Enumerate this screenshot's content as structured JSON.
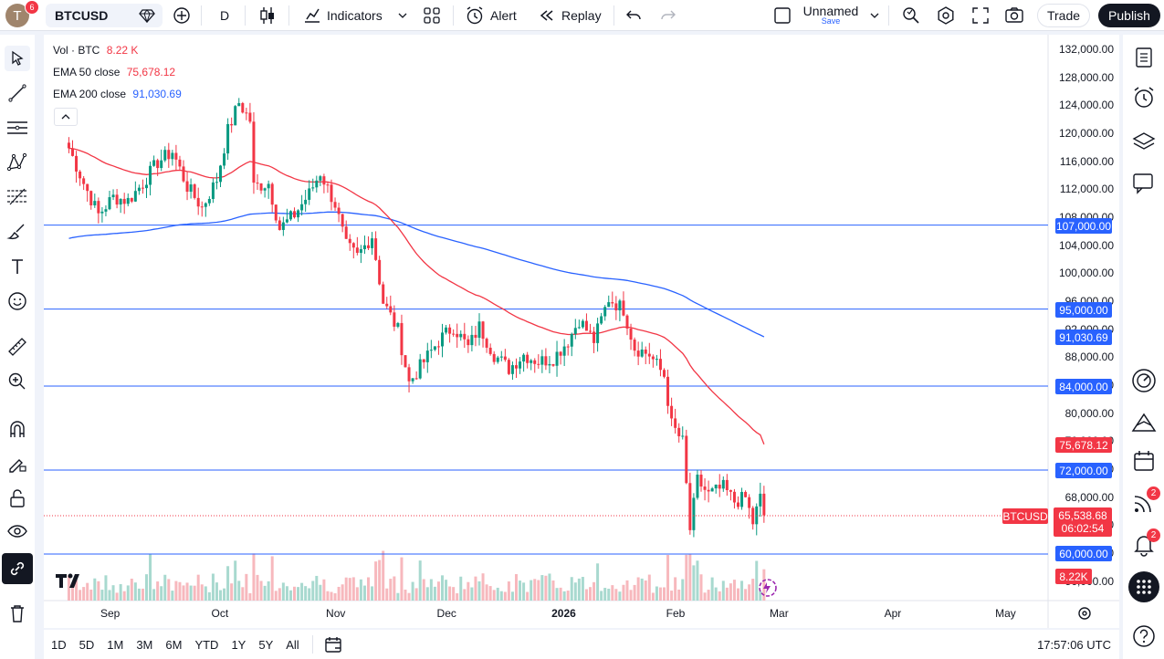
{
  "topbar": {
    "avatar_letter": "T",
    "avatar_badge": "6",
    "symbol": "BTCUSD",
    "interval": "D",
    "indicators_label": "Indicators",
    "alert_label": "Alert",
    "replay_label": "Replay",
    "layout_name": "Unnamed",
    "layout_save": "Save",
    "trade_label": "Trade",
    "publish_label": "Publish"
  },
  "legend": {
    "vol_title": "Vol · BTC",
    "vol_value": "8.22 K",
    "ema50_title": "EMA 50 close",
    "ema50_value": "75,678.12",
    "ema200_title": "EMA 200 close",
    "ema200_value": "91,030.69"
  },
  "price_axis": {
    "ticks": [
      "132,000.00",
      "128,000.00",
      "124,000.00",
      "120,000.00",
      "116,000.00",
      "112,000.00",
      "108,000.00",
      "104,000.00",
      "100,000.00",
      "96,000.00",
      "92,000.00",
      "88,000.00",
      "84,000.00",
      "80,000.00",
      "76,000.00",
      "72,000.00",
      "68,000.00",
      "64,000.00",
      "60,000.00",
      "56,000.00"
    ]
  },
  "price_labels": {
    "level_107": "107,000.00",
    "level_95": "95,000.00",
    "ema200": "91,030.69",
    "level_84": "84,000.00",
    "ema50": "75,678.12",
    "level_72": "72,000.00",
    "symbol_tag": "BTCUSD",
    "last_price": "65,538.68",
    "countdown": "06:02:54",
    "level_60": "60,000.00",
    "volume": "8.22K"
  },
  "time_axis": [
    "Sep",
    "Oct",
    "Nov",
    "Dec",
    "2026",
    "Feb",
    "Mar",
    "Apr",
    "May"
  ],
  "bottombar": {
    "ranges": [
      "1D",
      "5D",
      "1M",
      "3M",
      "6M",
      "YTD",
      "1Y",
      "5Y",
      "All"
    ],
    "clock": "17:57:06 UTC"
  },
  "right_badges": {
    "signals": "2",
    "alerts": "2"
  },
  "colors": {
    "up": "#089981",
    "down": "#f23645",
    "ema50": "#f23645",
    "ema200": "#2962ff",
    "hline": "#2962ff",
    "accent": "#2962ff"
  },
  "chart_data": {
    "type": "candlestick",
    "symbol": "BTCUSD",
    "interval": "D",
    "horizontal_levels": [
      107000,
      95000,
      84000,
      72000,
      60000
    ],
    "last_price": 65538.68,
    "ema50_last": 75678.12,
    "ema200_last": 91030.69,
    "volume_last_k": 8.22,
    "ylim": [
      56000,
      134000
    ],
    "close_path": [
      [
        "2025-08-21",
        118000
      ],
      [
        "2025-08-25",
        113000
      ],
      [
        "2025-08-29",
        108500
      ],
      [
        "2025-09-02",
        111000
      ],
      [
        "2025-09-06",
        110500
      ],
      [
        "2025-09-10",
        113000
      ],
      [
        "2025-09-14",
        116000
      ],
      [
        "2025-09-18",
        117500
      ],
      [
        "2025-09-22",
        112500
      ],
      [
        "2025-09-26",
        109500
      ],
      [
        "2025-09-30",
        113500
      ],
      [
        "2025-10-03",
        120500
      ],
      [
        "2025-10-06",
        124500
      ],
      [
        "2025-10-09",
        122000
      ],
      [
        "2025-10-10",
        112500
      ],
      [
        "2025-10-14",
        113000
      ],
      [
        "2025-10-17",
        106500
      ],
      [
        "2025-10-21",
        108500
      ],
      [
        "2025-10-25",
        111500
      ],
      [
        "2025-10-28",
        114500
      ],
      [
        "2025-11-01",
        110000
      ],
      [
        "2025-11-04",
        104000
      ],
      [
        "2025-11-07",
        102500
      ],
      [
        "2025-11-11",
        105500
      ],
      [
        "2025-11-14",
        96000
      ],
      [
        "2025-11-18",
        92000
      ],
      [
        "2025-11-21",
        84500
      ],
      [
        "2025-11-25",
        87500
      ],
      [
        "2025-11-29",
        90500
      ],
      [
        "2025-12-03",
        92500
      ],
      [
        "2025-12-07",
        89500
      ],
      [
        "2025-12-10",
        92500
      ],
      [
        "2025-12-14",
        88500
      ],
      [
        "2025-12-18",
        86500
      ],
      [
        "2025-12-22",
        88500
      ],
      [
        "2025-12-26",
        87500
      ],
      [
        "2025-12-30",
        88000
      ],
      [
        "2026-01-03",
        90500
      ],
      [
        "2026-01-06",
        93500
      ],
      [
        "2026-01-10",
        90500
      ],
      [
        "2026-01-14",
        96500
      ],
      [
        "2026-01-18",
        95000
      ],
      [
        "2026-01-21",
        89500
      ],
      [
        "2026-01-25",
        88500
      ],
      [
        "2026-01-29",
        85500
      ],
      [
        "2026-01-31",
        78500
      ],
      [
        "2026-02-03",
        76000
      ],
      [
        "2026-02-05",
        63500
      ],
      [
        "2026-02-07",
        70500
      ],
      [
        "2026-02-10",
        68500
      ],
      [
        "2026-02-14",
        69500
      ],
      [
        "2026-02-17",
        67500
      ],
      [
        "2026-02-20",
        68000
      ],
      [
        "2026-02-22",
        64500
      ],
      [
        "2026-02-24",
        68000
      ],
      [
        "2026-02-25",
        65538.68
      ]
    ]
  }
}
